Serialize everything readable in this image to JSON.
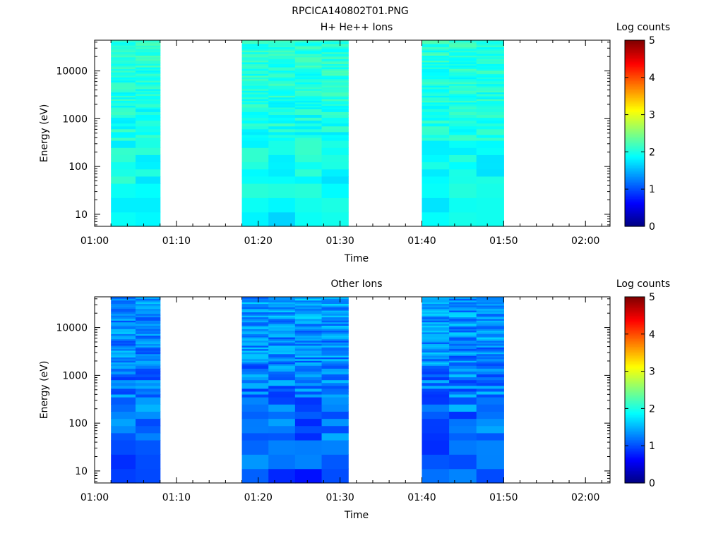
{
  "title": "RPCICA140802T01.PNG",
  "chart_data": [
    {
      "type": "heatmap",
      "title": "H+ He++ Ions",
      "xlabel": "Time",
      "ylabel": "Energy (eV)",
      "y_scale": "log",
      "ylim": [
        5.6,
        44000
      ],
      "x_range": [
        "01:00",
        "02:03"
      ],
      "x_ticks": [
        "01:00",
        "01:10",
        "01:20",
        "01:30",
        "01:40",
        "01:50",
        "02:00"
      ],
      "y_ticks": [
        10,
        100,
        1000,
        10000
      ],
      "y_tick_labels": [
        "10",
        "100",
        "1000",
        "10000"
      ],
      "colorbar": {
        "label": "Log counts",
        "min": 0,
        "max": 5,
        "ticks": [
          "0",
          "1",
          "2",
          "3",
          "4",
          "5"
        ]
      },
      "data_intervals": [
        [
          "01:02",
          "01:08"
        ],
        [
          "01:18",
          "01:31"
        ],
        [
          "01:40",
          "01:50"
        ]
      ],
      "typical_log_counts_range": [
        1.6,
        2.2
      ]
    },
    {
      "type": "heatmap",
      "title": "Other Ions",
      "xlabel": "Time",
      "ylabel": "Energy (eV)",
      "y_scale": "log",
      "ylim": [
        5.6,
        44000
      ],
      "x_range": [
        "01:00",
        "02:03"
      ],
      "x_ticks": [
        "01:00",
        "01:10",
        "01:20",
        "01:30",
        "01:40",
        "01:50",
        "02:00"
      ],
      "y_ticks": [
        10,
        100,
        1000,
        10000
      ],
      "y_tick_labels": [
        "10",
        "100",
        "1000",
        "10000"
      ],
      "colorbar": {
        "label": "Log counts",
        "min": 0,
        "max": 5,
        "ticks": [
          "0",
          "1",
          "2",
          "3",
          "4",
          "5"
        ]
      },
      "data_intervals": [
        [
          "01:02",
          "01:08"
        ],
        [
          "01:18",
          "01:31"
        ],
        [
          "01:40",
          "01:50"
        ]
      ],
      "typical_log_counts_range": [
        0.6,
        1.6
      ]
    }
  ]
}
